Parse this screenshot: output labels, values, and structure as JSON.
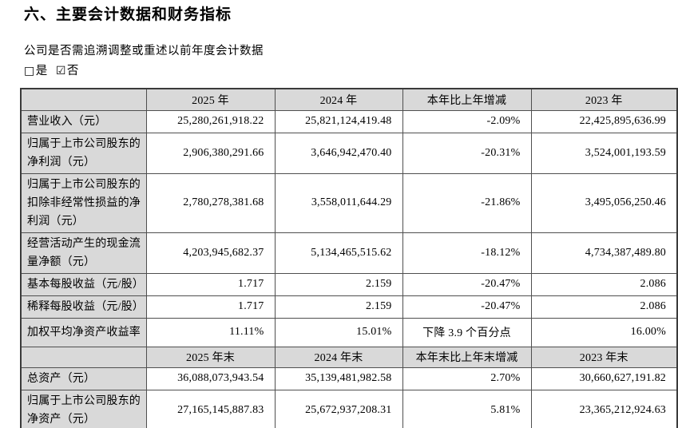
{
  "page": {
    "title": "六、主要会计数据和财务指标",
    "restatement_question": "公司是否需追溯调整或重述以前年度会计数据",
    "options": [
      {
        "symbol": "□",
        "label": "是",
        "checked": false
      },
      {
        "symbol": "☑",
        "label": "否",
        "checked": true
      }
    ]
  },
  "table": {
    "rows": [
      {
        "kind": "head",
        "cells": [
          "",
          "2025 年",
          "2024 年",
          "本年比上年增减",
          "2023 年"
        ]
      },
      {
        "kind": "data",
        "cells": [
          "营业收入（元）",
          "25,280,261,918.22",
          "25,821,124,419.48",
          "-2.09%",
          "22,425,895,636.99"
        ]
      },
      {
        "kind": "data",
        "cells": [
          "归属于上市公司股东的净利润（元）",
          "2,906,380,291.66",
          "3,646,942,470.40",
          "-20.31%",
          "3,524,001,193.59"
        ]
      },
      {
        "kind": "data",
        "cells": [
          "归属于上市公司股东的扣除非经常性损益的净利润（元）",
          "2,780,278,381.68",
          "3,558,011,644.29",
          "-21.86%",
          "3,495,056,250.46"
        ]
      },
      {
        "kind": "data",
        "cells": [
          "经营活动产生的现金流量净额（元）",
          "4,203,945,682.37",
          "5,134,465,515.62",
          "-18.12%",
          "4,734,387,489.80"
        ]
      },
      {
        "kind": "data",
        "cells": [
          "基本每股收益（元/股）",
          "1.717",
          "2.159",
          "-20.47%",
          "2.086"
        ]
      },
      {
        "kind": "data",
        "cells": [
          "稀释每股收益（元/股）",
          "1.717",
          "2.159",
          "-20.47%",
          "2.086"
        ]
      },
      {
        "kind": "data",
        "cells": [
          "加权平均净资产收益率",
          "11.11%",
          "15.01%",
          "下降 3.9 个百分点",
          "16.00%"
        ]
      },
      {
        "kind": "head",
        "cells": [
          "",
          "2025 年末",
          "2024 年末",
          "本年末比上年末增减",
          "2023 年末"
        ]
      },
      {
        "kind": "data",
        "cells": [
          "总资产（元）",
          "36,088,073,943.54",
          "35,139,481,982.58",
          "2.70%",
          "30,660,627,191.82"
        ]
      },
      {
        "kind": "data",
        "cells": [
          "归属于上市公司股东的净资产（元）",
          "27,165,145,887.83",
          "25,672,937,208.31",
          "5.81%",
          "23,365,212,924.63"
        ]
      }
    ]
  }
}
